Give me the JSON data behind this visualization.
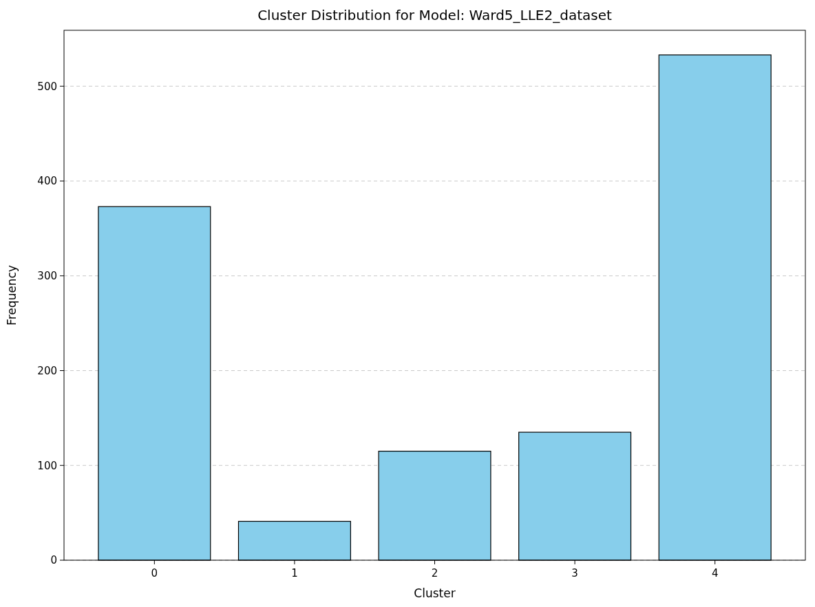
{
  "chart_data": {
    "type": "bar",
    "title": "Cluster Distribution for Model: Ward5_LLE2_dataset",
    "xlabel": "Cluster",
    "ylabel": "Frequency",
    "categories": [
      "0",
      "1",
      "2",
      "3",
      "4"
    ],
    "values": [
      373,
      41,
      115,
      135,
      533
    ],
    "color": "#87ceeb",
    "ylim": [
      0,
      559
    ],
    "yticks": [
      0,
      100,
      200,
      300,
      400,
      500
    ],
    "grid": "y"
  }
}
